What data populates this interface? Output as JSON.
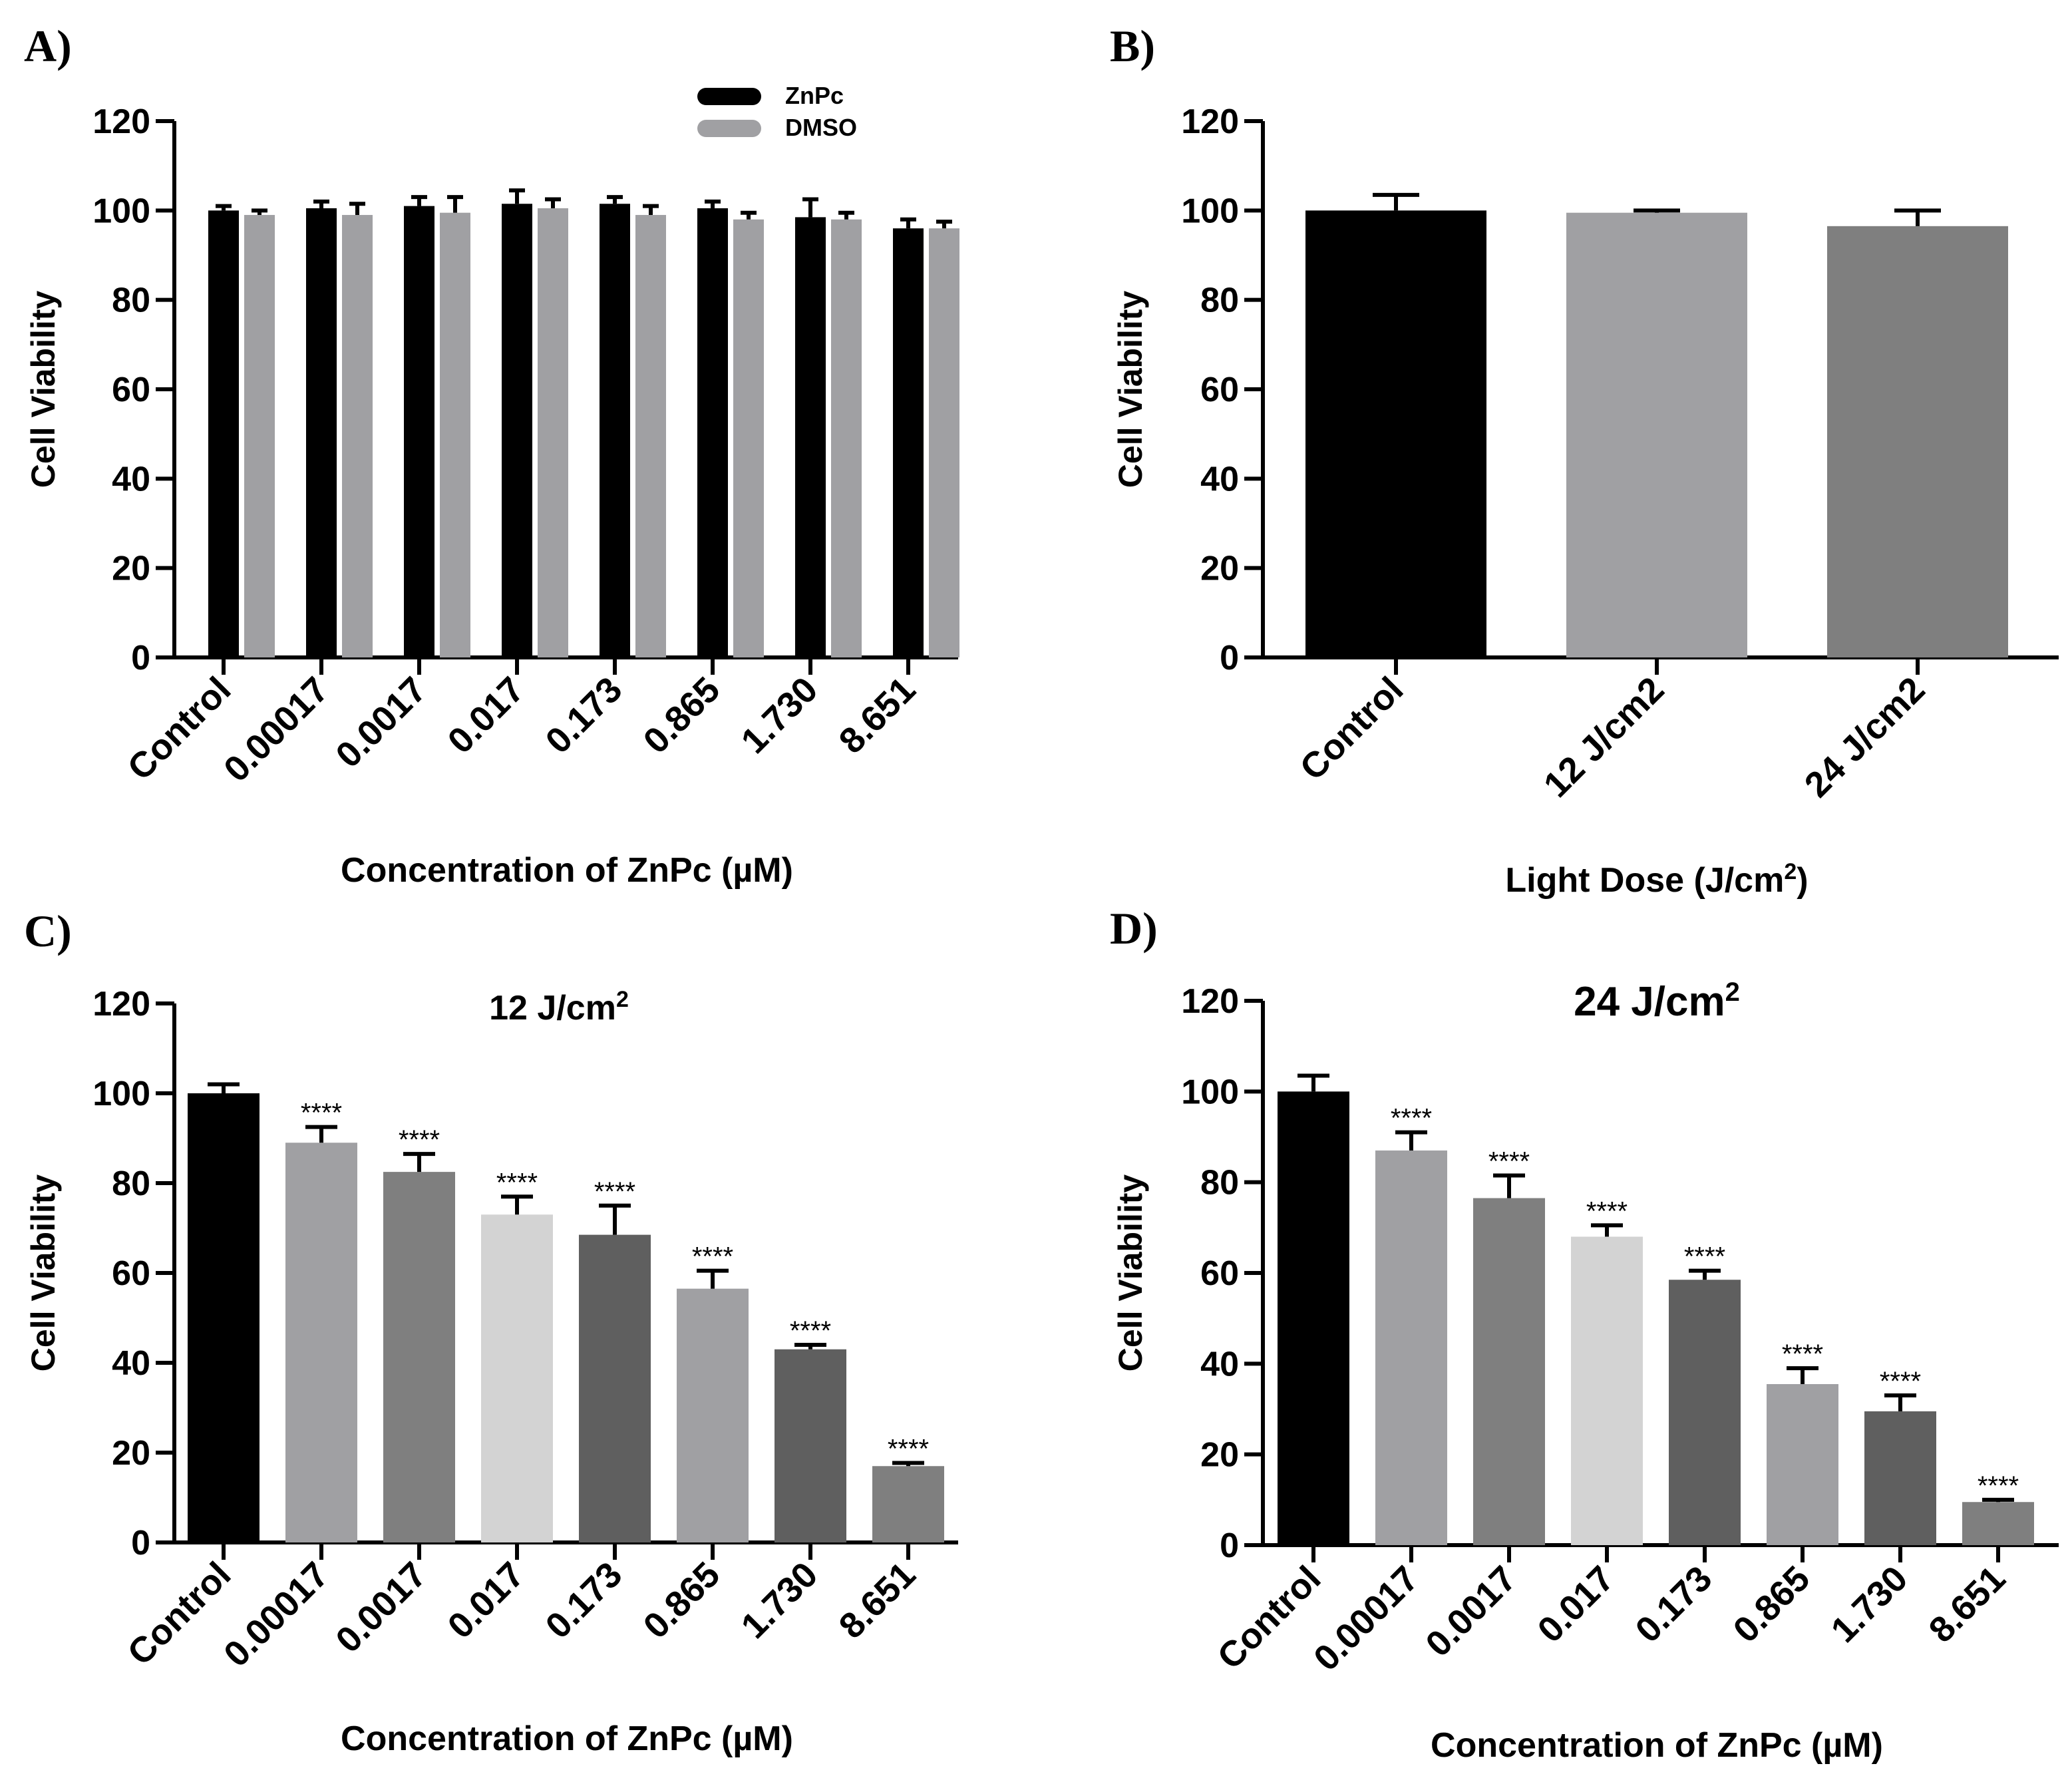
{
  "chart_data": [
    {
      "id": "A",
      "panel_label": "A)",
      "type": "bar",
      "title": "",
      "xlabel": "Concentration of ZnPc (µM)",
      "ylabel": "Cell Viability",
      "ylim": [
        0,
        120
      ],
      "yticks": [
        "0",
        "20",
        "40",
        "60",
        "80",
        "100",
        "120"
      ],
      "categories": [
        "Control",
        "0.00017",
        "0.0017",
        "0.017",
        "0.173",
        "0.865",
        "1.730",
        "8.651"
      ],
      "legend": "top-right",
      "series": [
        {
          "name": "ZnPc",
          "color": "#000000",
          "values": [
            100,
            100.5,
            101,
            101.5,
            101.5,
            100.5,
            98.5,
            96
          ],
          "errors": [
            1,
            1.5,
            2,
            3,
            1.5,
            1.5,
            4,
            2
          ]
        },
        {
          "name": "DMSO",
          "color": "#a0a0a3",
          "values": [
            99,
            99,
            99.5,
            100.5,
            99,
            98,
            98,
            96
          ],
          "errors": [
            1,
            2.5,
            3.5,
            2,
            2,
            1.5,
            1.5,
            1.5
          ]
        }
      ]
    },
    {
      "id": "B",
      "panel_label": "B)",
      "type": "bar",
      "title": "",
      "xlabel": "Light Dose (J/cm",
      "xlabel_sup": "2",
      "xlabel_end": ")",
      "ylabel": "Cell Viability",
      "ylim": [
        0,
        120
      ],
      "yticks": [
        "0",
        "20",
        "40",
        "60",
        "80",
        "100",
        "120"
      ],
      "categories": [
        "Control",
        "12 J/cm2",
        "24 J/cm2"
      ],
      "values": [
        100,
        99.5,
        96.5
      ],
      "errors": [
        3.5,
        0.5,
        3.5
      ],
      "colors": [
        "#000000",
        "#a0a0a3",
        "#7f7f7f"
      ]
    },
    {
      "id": "C",
      "panel_label": "C)",
      "type": "bar",
      "title": "12 J/cm",
      "title_sup": "2",
      "xlabel": "Concentration of ZnPc (µM)",
      "ylabel": "Cell Viability",
      "ylim": [
        0,
        120
      ],
      "yticks": [
        "0",
        "20",
        "40",
        "60",
        "80",
        "100",
        "120"
      ],
      "categories": [
        "Control",
        "0.00017",
        "0.0017",
        "0.017",
        "0.173",
        "0.865",
        "1.730",
        "8.651"
      ],
      "values": [
        100,
        89,
        82.5,
        73,
        68.5,
        56.5,
        43,
        17
      ],
      "errors": [
        2,
        3.5,
        4,
        4,
        6.5,
        4,
        1,
        0.7
      ],
      "significance": [
        "",
        "****",
        "****",
        "****",
        "****",
        "****",
        "****",
        "****"
      ],
      "colors": [
        "#000000",
        "#a0a0a3",
        "#7f7f7f",
        "#d3d3d3",
        "#5f5f5f",
        "#a0a0a3",
        "#5f5f5f",
        "#7f7f7f"
      ]
    },
    {
      "id": "D",
      "panel_label": "D)",
      "type": "bar",
      "title": "24 J/cm",
      "title_sup": "2",
      "xlabel": "Concentration of ZnPc (µM)",
      "ylabel": "Cell Viability",
      "ylim": [
        0,
        120
      ],
      "yticks": [
        "0",
        "20",
        "40",
        "60",
        "80",
        "100",
        "120"
      ],
      "categories": [
        "Control",
        "0.00017",
        "0.0017",
        "0.017",
        "0.173",
        "0.865",
        "1.730",
        "8.651"
      ],
      "values": [
        100,
        87,
        76.5,
        68,
        58.5,
        35.5,
        29.5,
        9.5
      ],
      "errors": [
        3.5,
        4,
        5,
        2.5,
        2,
        3.5,
        3.5,
        0.5
      ],
      "significance": [
        "",
        "****",
        "****",
        "****",
        "****",
        "****",
        "****",
        "****"
      ],
      "colors": [
        "#000000",
        "#a0a0a3",
        "#7f7f7f",
        "#d3d3d3",
        "#5f5f5f",
        "#a0a0a3",
        "#5f5f5f",
        "#7f7f7f"
      ]
    }
  ]
}
